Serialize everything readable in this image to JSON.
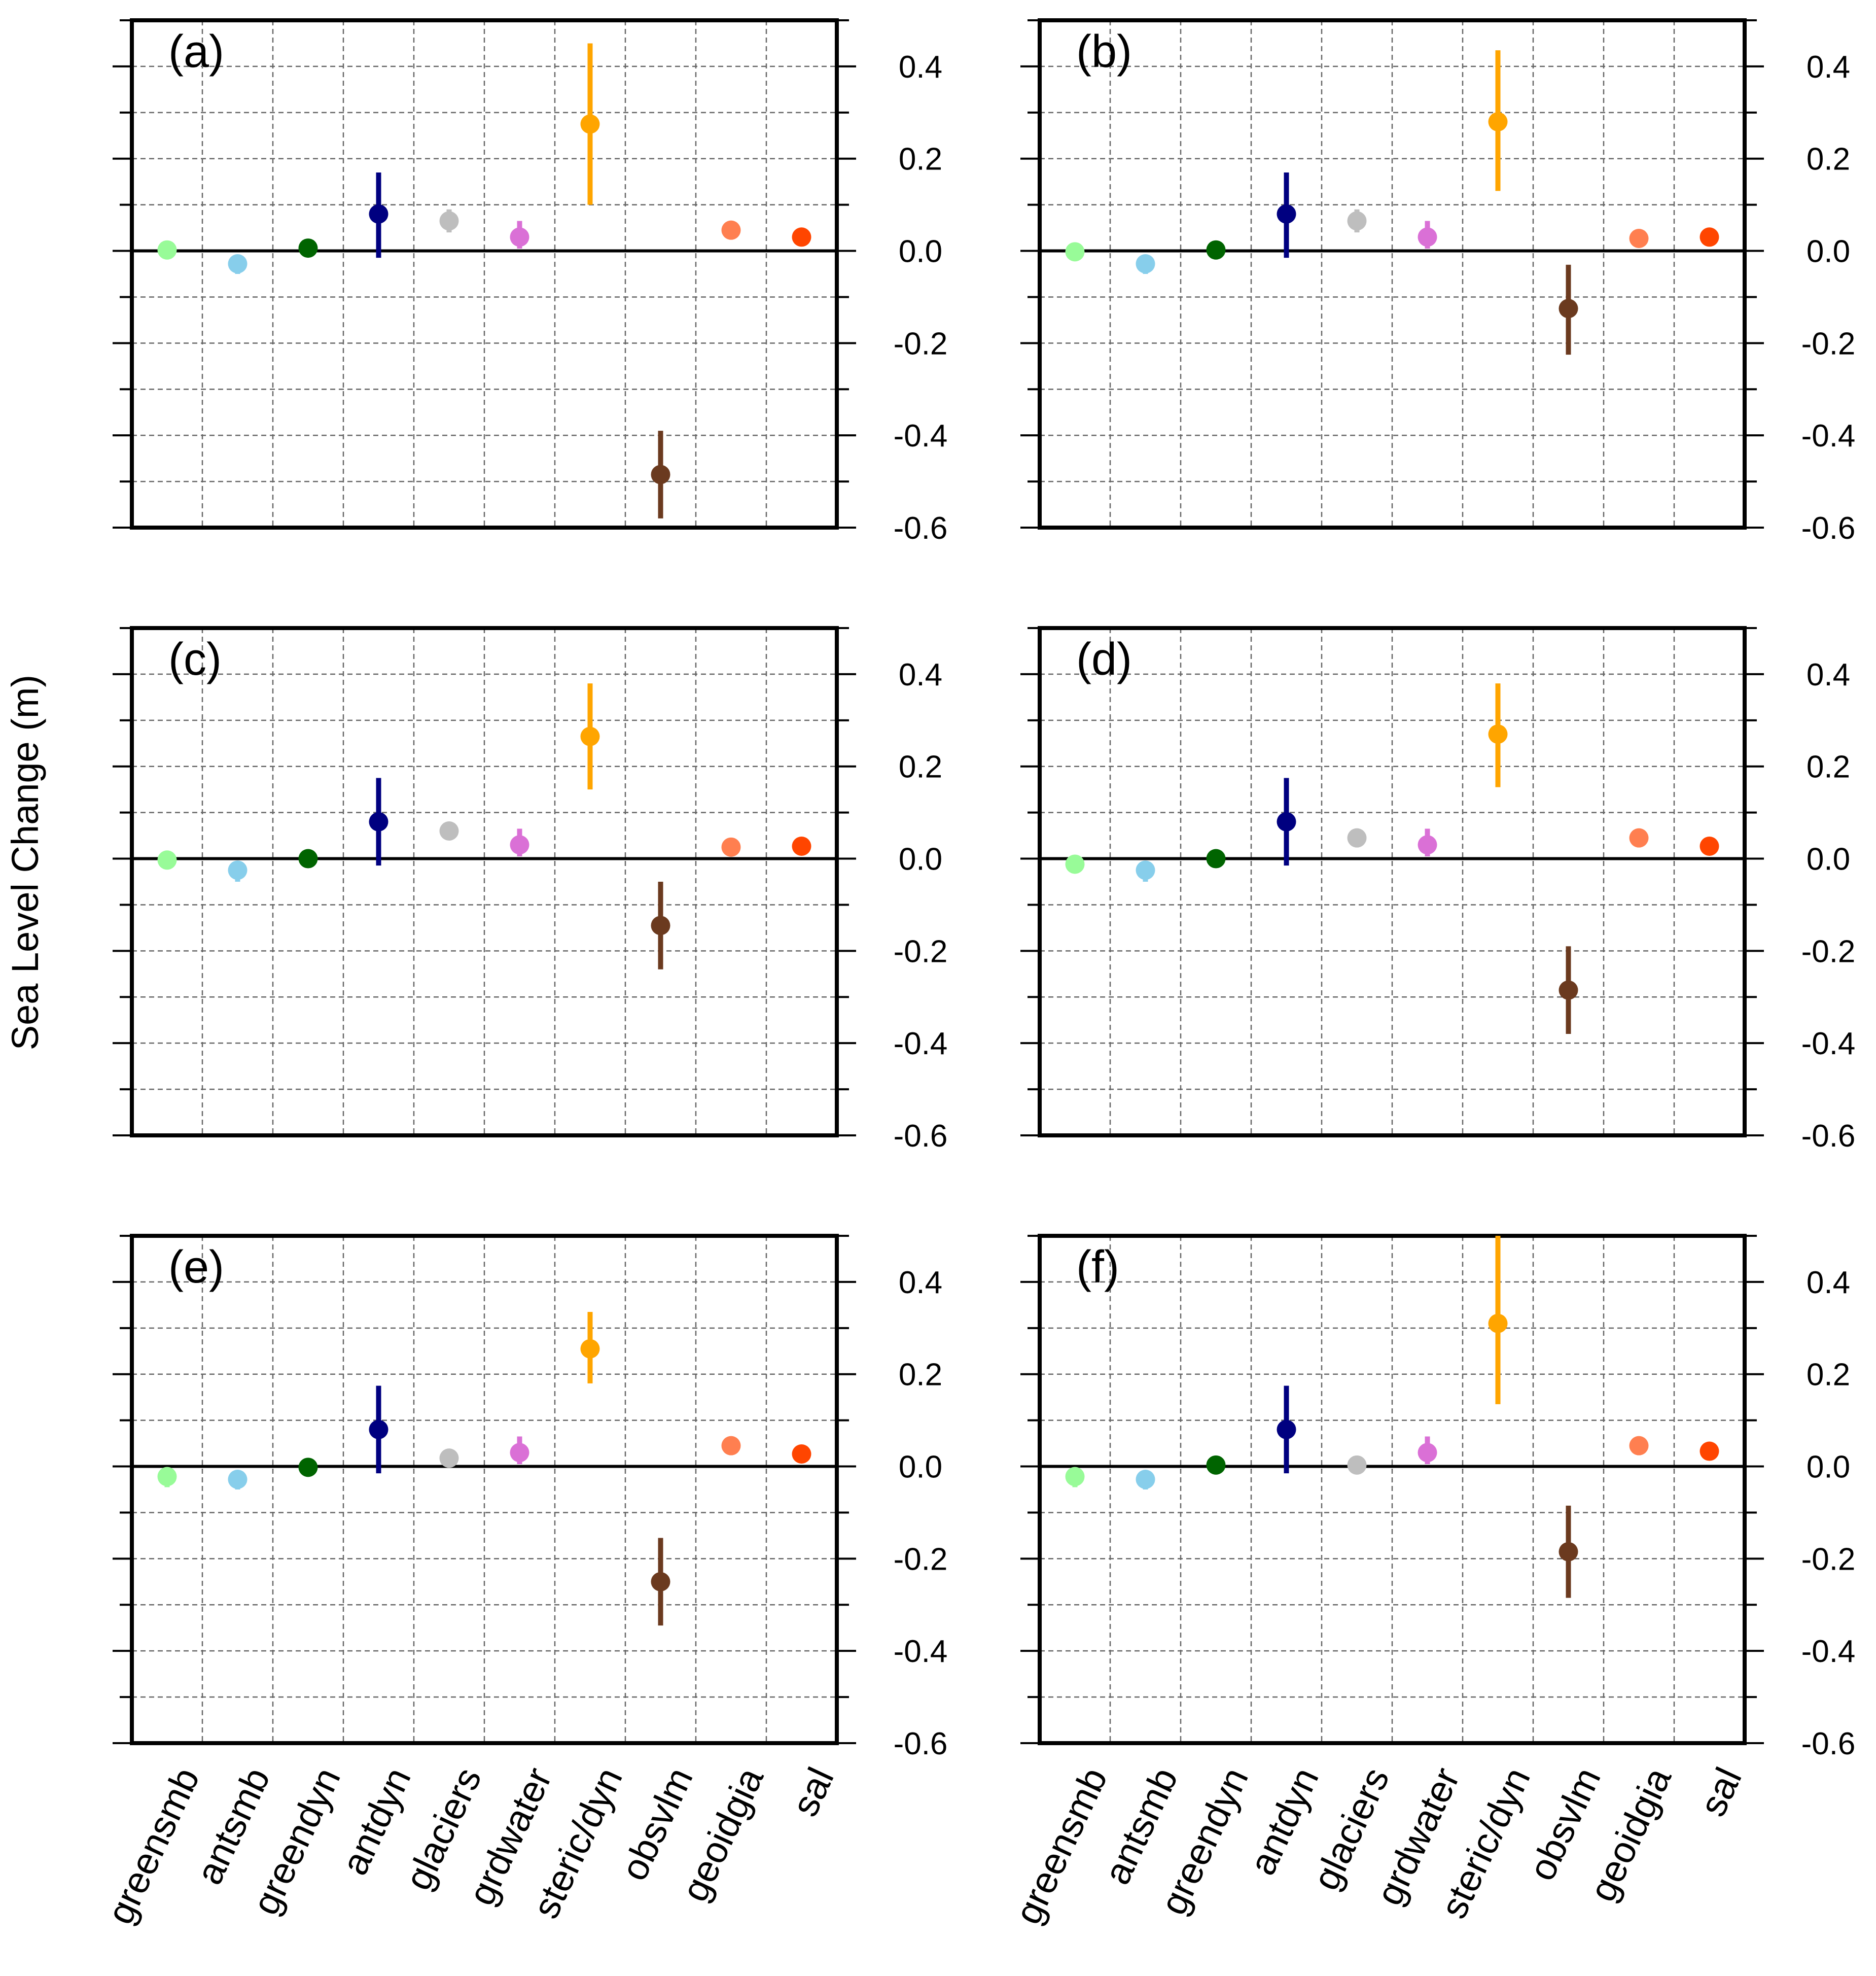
{
  "figure": {
    "ylabel": "Sea Level Change (m)"
  },
  "chart_data": [
    {
      "type": "scatter",
      "panel_label": "(a)",
      "categories": [
        "greensmb",
        "antsmb",
        "greendyn",
        "antdyn",
        "glaciers",
        "grdwater",
        "steric/dyn",
        "obsvlm",
        "geoidgia",
        "sal"
      ],
      "values": [
        0.002,
        -0.028,
        0.006,
        0.08,
        0.065,
        0.03,
        0.275,
        -0.485,
        0.045,
        0.03
      ],
      "err_low": [
        0.0,
        -0.05,
        0.0,
        -0.015,
        0.04,
        0.005,
        0.1,
        -0.58,
        0.045,
        0.03
      ],
      "err_high": [
        0.0,
        -0.01,
        0.0,
        0.17,
        0.09,
        0.065,
        0.45,
        -0.39,
        0.045,
        0.03
      ],
      "ylim": [
        -0.6,
        0.5
      ],
      "yticks": [
        "0.4",
        "0.2",
        "0.0",
        "-0.2",
        "-0.4",
        "-0.6"
      ],
      "grid": true
    },
    {
      "type": "scatter",
      "panel_label": "(b)",
      "categories": [
        "greensmb",
        "antsmb",
        "greendyn",
        "antdyn",
        "glaciers",
        "grdwater",
        "steric/dyn",
        "obsvlm",
        "geoidgia",
        "sal"
      ],
      "values": [
        -0.002,
        -0.028,
        0.002,
        0.08,
        0.065,
        0.03,
        0.28,
        -0.125,
        0.027,
        0.03
      ],
      "err_low": [
        0.0,
        -0.05,
        0.0,
        -0.015,
        0.04,
        0.005,
        0.13,
        -0.225,
        0.027,
        0.03
      ],
      "err_high": [
        0.0,
        -0.01,
        0.0,
        0.17,
        0.09,
        0.065,
        0.435,
        -0.03,
        0.027,
        0.03
      ],
      "ylim": [
        -0.6,
        0.5
      ],
      "yticks": [
        "0.4",
        "0.2",
        "0.0",
        "-0.2",
        "-0.4",
        "-0.6"
      ],
      "grid": true
    },
    {
      "type": "scatter",
      "panel_label": "(c)",
      "categories": [
        "greensmb",
        "antsmb",
        "greendyn",
        "antdyn",
        "glaciers",
        "grdwater",
        "steric/dyn",
        "obsvlm",
        "geoidgia",
        "sal"
      ],
      "values": [
        -0.003,
        -0.025,
        0.0,
        0.08,
        0.06,
        0.03,
        0.265,
        -0.145,
        0.025,
        0.027
      ],
      "err_low": [
        0.0,
        -0.05,
        0.0,
        -0.015,
        0.04,
        0.005,
        0.15,
        -0.24,
        0.025,
        0.027
      ],
      "err_high": [
        0.0,
        -0.01,
        0.0,
        0.175,
        0.08,
        0.065,
        0.38,
        -0.05,
        0.025,
        0.027
      ],
      "ylim": [
        -0.6,
        0.5
      ],
      "yticks": [
        "0.4",
        "0.2",
        "0.0",
        "-0.2",
        "-0.4",
        "-0.6"
      ],
      "grid": true
    },
    {
      "type": "scatter",
      "panel_label": "(d)",
      "categories": [
        "greensmb",
        "antsmb",
        "greendyn",
        "antdyn",
        "glaciers",
        "grdwater",
        "steric/dyn",
        "obsvlm",
        "geoidgia",
        "sal"
      ],
      "values": [
        -0.012,
        -0.025,
        0.0,
        0.08,
        0.045,
        0.03,
        0.27,
        -0.285,
        0.045,
        0.027
      ],
      "err_low": [
        -0.012,
        -0.05,
        0.0,
        -0.015,
        0.045,
        0.005,
        0.155,
        -0.38,
        0.045,
        0.027
      ],
      "err_high": [
        -0.012,
        -0.01,
        0.0,
        0.175,
        0.045,
        0.065,
        0.38,
        -0.19,
        0.045,
        0.027
      ],
      "ylim": [
        -0.6,
        0.5
      ],
      "yticks": [
        "0.4",
        "0.2",
        "0.0",
        "-0.2",
        "-0.4",
        "-0.6"
      ],
      "grid": true
    },
    {
      "type": "scatter",
      "panel_label": "(e)",
      "categories": [
        "greensmb",
        "antsmb",
        "greendyn",
        "antdyn",
        "glaciers",
        "grdwater",
        "steric/dyn",
        "obsvlm",
        "geoidgia",
        "sal"
      ],
      "values": [
        -0.022,
        -0.028,
        -0.002,
        0.08,
        0.018,
        0.03,
        0.255,
        -0.25,
        0.045,
        0.027
      ],
      "err_low": [
        -0.045,
        -0.05,
        -0.002,
        -0.015,
        0.018,
        0.005,
        0.18,
        -0.345,
        0.045,
        0.027
      ],
      "err_high": [
        -0.01,
        -0.01,
        -0.002,
        0.175,
        0.018,
        0.065,
        0.335,
        -0.155,
        0.045,
        0.027
      ],
      "ylim": [
        -0.6,
        0.5
      ],
      "yticks": [
        "0.4",
        "0.2",
        "0.0",
        "-0.2",
        "-0.4",
        "-0.6"
      ],
      "grid": true
    },
    {
      "type": "scatter",
      "panel_label": "(f)",
      "categories": [
        "greensmb",
        "antsmb",
        "greendyn",
        "antdyn",
        "glaciers",
        "grdwater",
        "steric/dyn",
        "obsvlm",
        "geoidgia",
        "sal"
      ],
      "values": [
        -0.022,
        -0.028,
        0.003,
        0.08,
        0.003,
        0.03,
        0.31,
        -0.185,
        0.045,
        0.033
      ],
      "err_low": [
        -0.045,
        -0.05,
        0.003,
        -0.015,
        0.003,
        0.005,
        0.135,
        -0.285,
        0.045,
        0.033
      ],
      "err_high": [
        -0.01,
        -0.01,
        0.003,
        0.175,
        0.003,
        0.065,
        0.5,
        -0.085,
        0.045,
        0.033
      ],
      "ylim": [
        -0.6,
        0.5
      ],
      "yticks": [
        "0.4",
        "0.2",
        "0.0",
        "-0.2",
        "-0.4",
        "-0.6"
      ],
      "grid": true
    }
  ],
  "series_colors": [
    "#98fb98",
    "#87ceeb",
    "#006400",
    "#000080",
    "#bebebe",
    "#da70d6",
    "#ffa500",
    "#6b3a1f",
    "#ff7f50",
    "#ff4500"
  ]
}
